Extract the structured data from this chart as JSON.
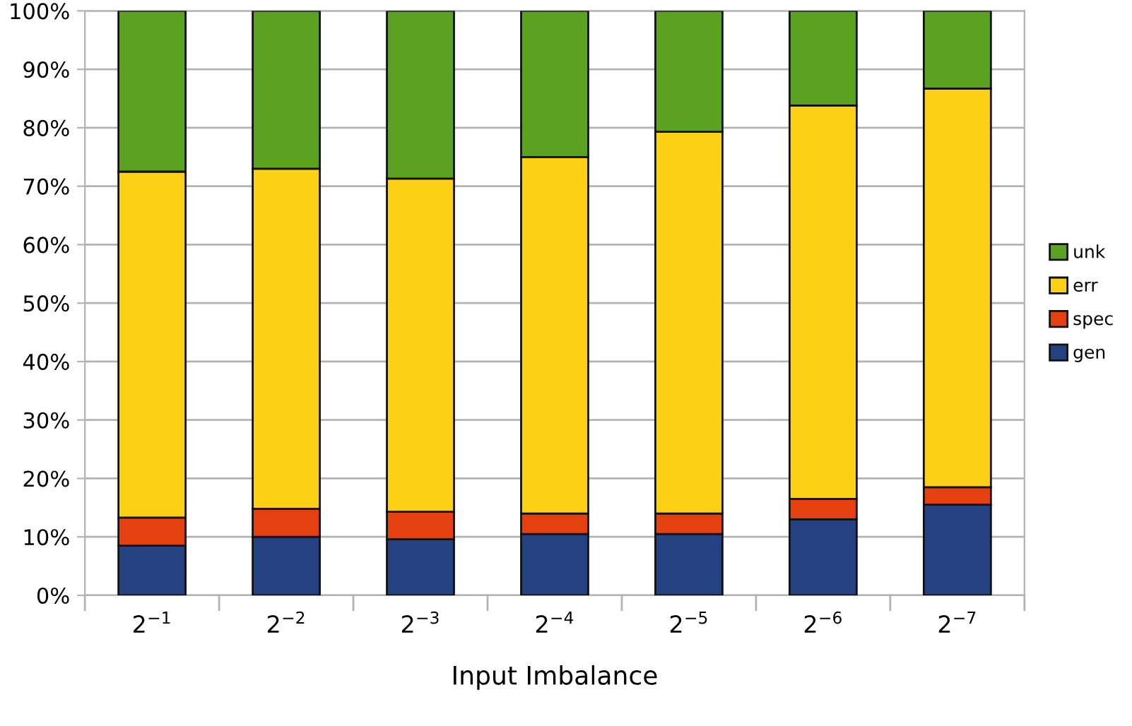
{
  "chart_data": {
    "type": "bar",
    "stacked": true,
    "xlabel": "Input Imbalance",
    "categories": [
      "2$^{−1}$",
      "2$^{−2}$",
      "2$^{−3}$",
      "2$^{−4}$",
      "2$^{−5}$",
      "2$^{−6}$",
      "2$^{−7}$"
    ],
    "series": [
      {
        "name": "gen",
        "color": "#244282",
        "values": [
          8.5,
          10,
          9.6,
          10.5,
          10.5,
          13,
          15.5
        ]
      },
      {
        "name": "spec",
        "color": "#e5400f",
        "values": [
          4.8,
          4.8,
          4.7,
          3.5,
          3.5,
          3.5,
          3
        ]
      },
      {
        "name": "err",
        "color": "#fcd115",
        "values": [
          59.2,
          58.2,
          57,
          61,
          65.3,
          67.3,
          68.2
        ]
      },
      {
        "name": "unk",
        "color": "#5aa220",
        "values": [
          27.5,
          27,
          28.7,
          25,
          20.7,
          16.2,
          13.3
        ]
      }
    ],
    "ylim": [
      0,
      100
    ],
    "yticks": [
      {
        "value": 0,
        "label": "0%"
      },
      {
        "value": 10,
        "label": "10%"
      },
      {
        "value": 20,
        "label": "20%"
      },
      {
        "value": 30,
        "label": "30%"
      },
      {
        "value": 40,
        "label": "40%"
      },
      {
        "value": 50,
        "label": "50%"
      },
      {
        "value": 60,
        "label": "60%"
      },
      {
        "value": 70,
        "label": "70%"
      },
      {
        "value": 80,
        "label": "80%"
      },
      {
        "value": 90,
        "label": "90%"
      },
      {
        "value": 100,
        "label": "100%"
      }
    ],
    "grid": "y",
    "legend": "right"
  }
}
